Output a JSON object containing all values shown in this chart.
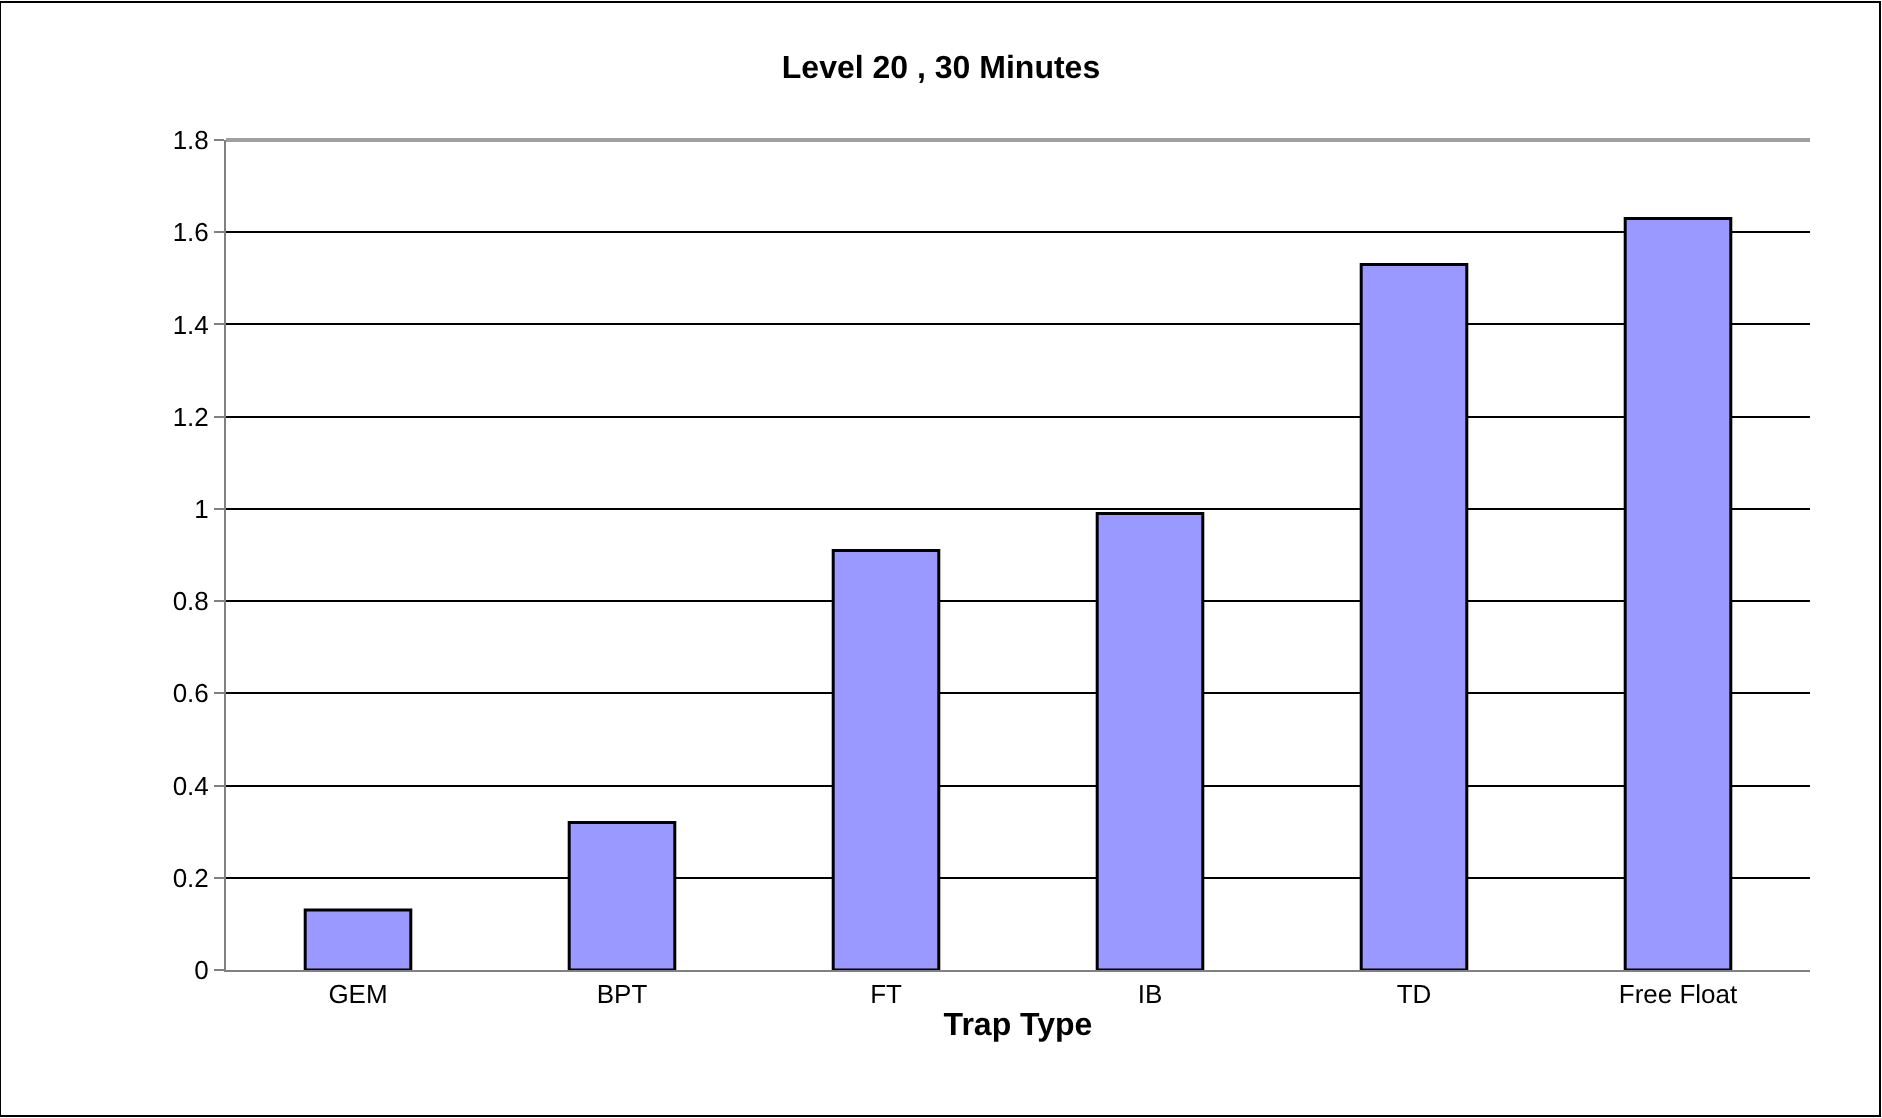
{
  "chart_data": {
    "type": "bar",
    "title": "Level 20 , 30 Minutes",
    "xlabel": "Trap Type",
    "categories": [
      "GEM",
      "BPT",
      "FT",
      "IB",
      "TD",
      "Free Float"
    ],
    "values": [
      0.13,
      0.32,
      0.91,
      0.99,
      1.53,
      1.63
    ],
    "color": "#9999ff",
    "ylim": [
      0,
      1.8
    ],
    "yticks": [
      0,
      0.2,
      0.4,
      0.6,
      0.8,
      1,
      1.2,
      1.4,
      1.6,
      1.8
    ],
    "grid": "y",
    "legend": false
  }
}
